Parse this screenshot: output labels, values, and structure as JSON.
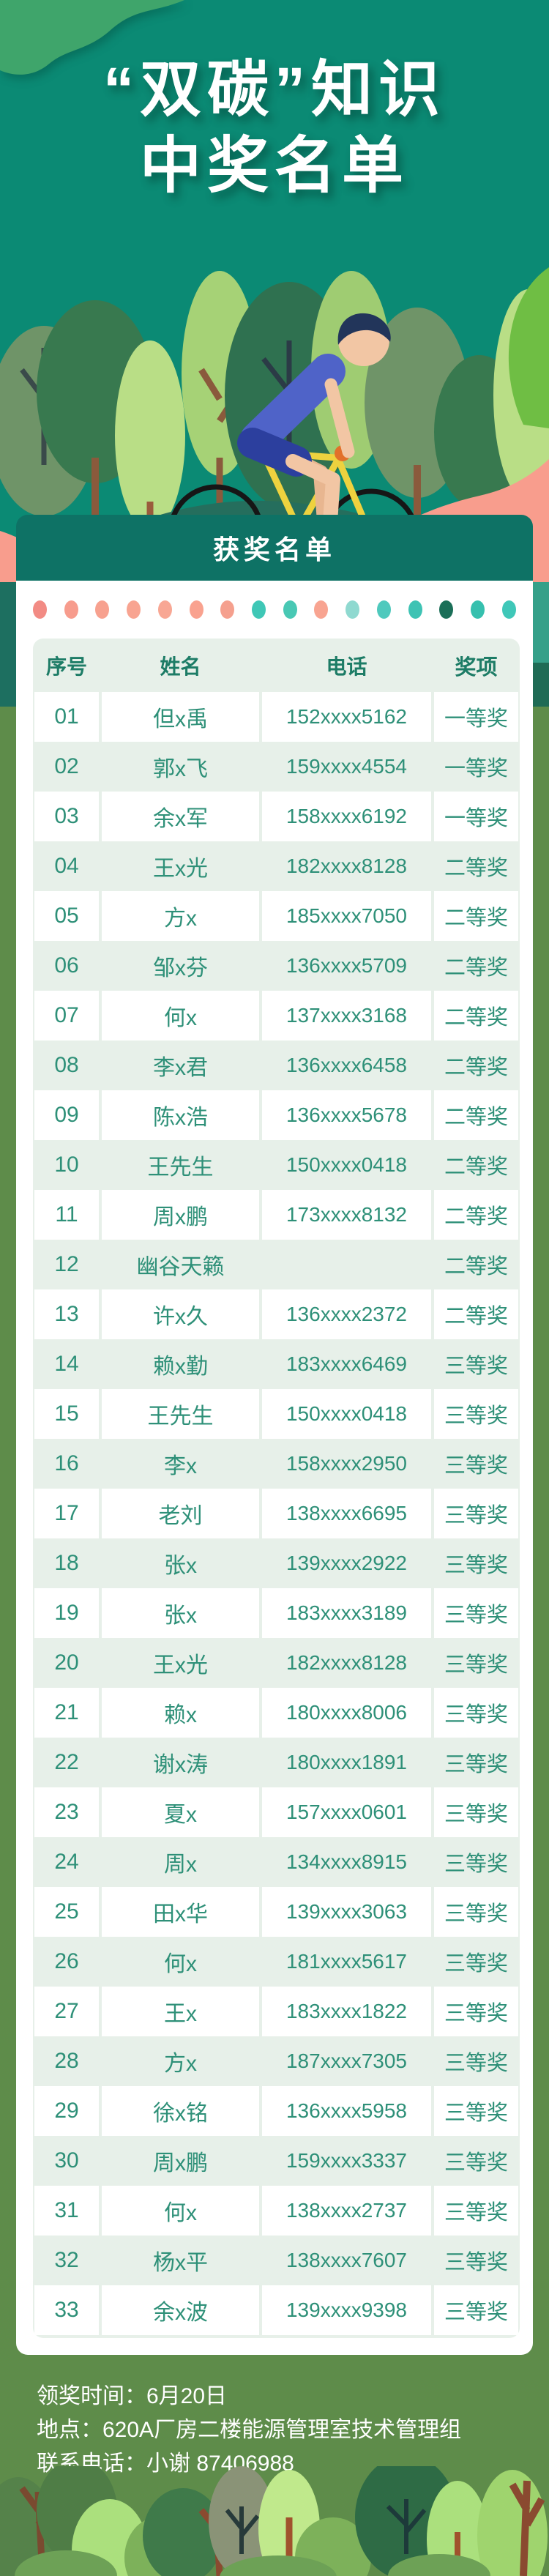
{
  "page": {
    "title_line1": "“双碳”知识",
    "title_line2": "中奖名单",
    "section_title": "获奖名单"
  },
  "table": {
    "headers": [
      "序号",
      "姓名",
      "电话",
      "奖项"
    ],
    "rows": [
      {
        "no": "01",
        "name": "但x禹",
        "phone": "152xxxx5162",
        "prize": "一等奖"
      },
      {
        "no": "02",
        "name": "郭x飞",
        "phone": "159xxxx4554",
        "prize": "一等奖"
      },
      {
        "no": "03",
        "name": "余x军",
        "phone": "158xxxx6192",
        "prize": "一等奖"
      },
      {
        "no": "04",
        "name": "王x光",
        "phone": "182xxxx8128",
        "prize": "二等奖"
      },
      {
        "no": "05",
        "name": "方x",
        "phone": "185xxxx7050",
        "prize": "二等奖"
      },
      {
        "no": "06",
        "name": "邹x芬",
        "phone": "136xxxx5709",
        "prize": "二等奖"
      },
      {
        "no": "07",
        "name": "何x",
        "phone": "137xxxx3168",
        "prize": "二等奖"
      },
      {
        "no": "08",
        "name": "李x君",
        "phone": "136xxxx6458",
        "prize": "二等奖"
      },
      {
        "no": "09",
        "name": "陈x浩",
        "phone": "136xxxx5678",
        "prize": "二等奖"
      },
      {
        "no": "10",
        "name": "王先生",
        "phone": "150xxxx0418",
        "prize": "二等奖"
      },
      {
        "no": "11",
        "name": "周x鹏",
        "phone": "173xxxx8132",
        "prize": "二等奖"
      },
      {
        "no": "12",
        "name": "幽谷天籁",
        "phone": "",
        "prize": "二等奖"
      },
      {
        "no": "13",
        "name": "许x久",
        "phone": "136xxxx2372",
        "prize": "二等奖"
      },
      {
        "no": "14",
        "name": "赖x勤",
        "phone": "183xxxx6469",
        "prize": "三等奖"
      },
      {
        "no": "15",
        "name": "王先生",
        "phone": "150xxxx0418",
        "prize": "三等奖"
      },
      {
        "no": "16",
        "name": "李x",
        "phone": "158xxxx2950",
        "prize": "三等奖"
      },
      {
        "no": "17",
        "name": "老刘",
        "phone": "138xxxx6695",
        "prize": "三等奖"
      },
      {
        "no": "18",
        "name": "张x",
        "phone": "139xxxx2922",
        "prize": "三等奖"
      },
      {
        "no": "19",
        "name": "张x",
        "phone": "183xxxx3189",
        "prize": "三等奖"
      },
      {
        "no": "20",
        "name": "王x光",
        "phone": "182xxxx8128",
        "prize": "三等奖"
      },
      {
        "no": "21",
        "name": "赖x",
        "phone": "180xxxx8006",
        "prize": "三等奖"
      },
      {
        "no": "22",
        "name": "谢x涛",
        "phone": "180xxxx1891",
        "prize": "三等奖"
      },
      {
        "no": "23",
        "name": "夏x",
        "phone": "157xxxx0601",
        "prize": "三等奖"
      },
      {
        "no": "24",
        "name": "周x",
        "phone": "134xxxx8915",
        "prize": "三等奖"
      },
      {
        "no": "25",
        "name": "田x华",
        "phone": "139xxxx3063",
        "prize": "三等奖"
      },
      {
        "no": "26",
        "name": "何x",
        "phone": "181xxxx5617",
        "prize": "三等奖"
      },
      {
        "no": "27",
        "name": "王x",
        "phone": "183xxxx1822",
        "prize": "三等奖"
      },
      {
        "no": "28",
        "name": "方x",
        "phone": "187xxxx7305",
        "prize": "三等奖"
      },
      {
        "no": "29",
        "name": "徐x铭",
        "phone": "136xxxx5958",
        "prize": "三等奖"
      },
      {
        "no": "30",
        "name": "周x鹏",
        "phone": "159xxxx3337",
        "prize": "三等奖"
      },
      {
        "no": "31",
        "name": "何x",
        "phone": "138xxxx2737",
        "prize": "三等奖"
      },
      {
        "no": "32",
        "name": "杨x平",
        "phone": "138xxxx7607",
        "prize": "三等奖"
      },
      {
        "no": "33",
        "name": "余x波",
        "phone": "139xxxx9398",
        "prize": "三等奖"
      }
    ]
  },
  "footer": {
    "line1": "领奖时间：6月20日",
    "line2": "地点：620A厂房二楼能源管理室技术管理组",
    "line3": "联系电话：小谢 87406988"
  },
  "decor": {
    "dot_colors": [
      "#f28b84",
      "#f79c8d",
      "#f7a18f",
      "#f8a491",
      "#f8a794",
      "#f9a28f",
      "#f5a08e",
      "#3fc7b6",
      "#49c8b4",
      "#f8a491",
      "#8fd9d0",
      "#4fc9bd",
      "#3ec3b4",
      "#1b6f58",
      "#36c0ae",
      "#3fc7b8"
    ],
    "colors": {
      "bg_top": "#0b8a74",
      "bg_bottom": "#5e8c4a",
      "section_bar": "#0e7265",
      "table_bg": "#e7f0e9",
      "header_text": "#1d7c66",
      "body_text": "#2e9078",
      "bike": "#eed23f",
      "wave": "#3fa56b"
    }
  }
}
